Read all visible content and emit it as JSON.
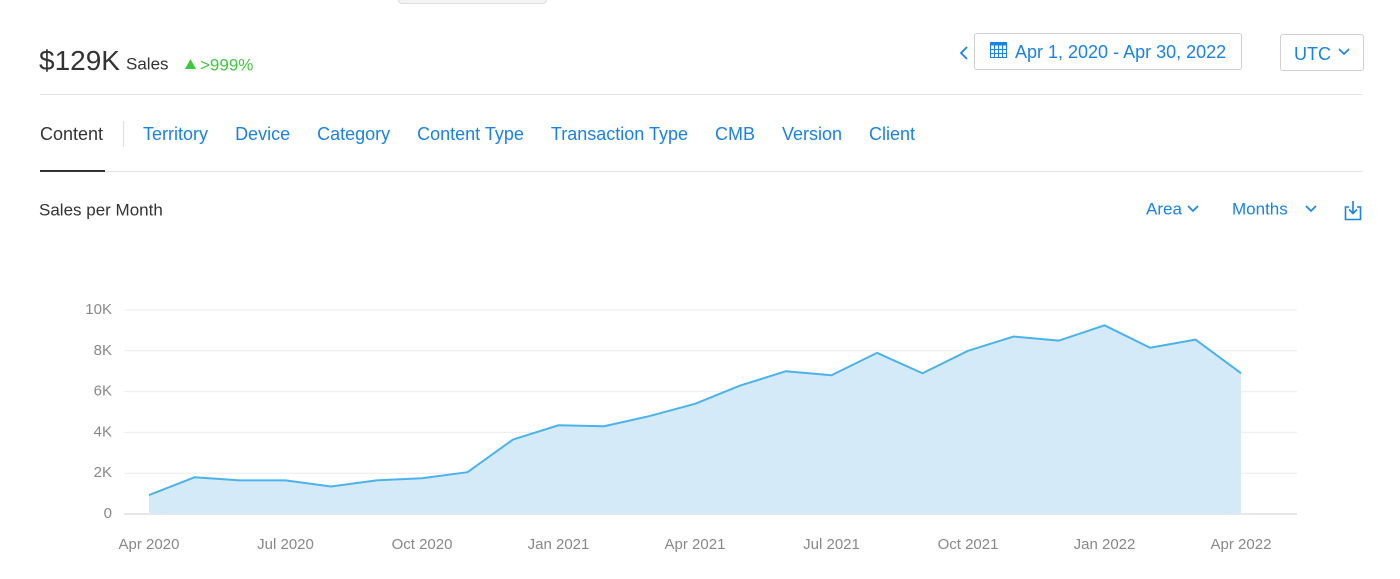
{
  "header": {
    "total": "$129K",
    "total_label": "Sales",
    "change": ">999%",
    "date_range": "Apr 1, 2020 - Apr 30, 2022",
    "timezone": "UTC"
  },
  "tabs": [
    "Content",
    "Territory",
    "Device",
    "Category",
    "Content Type",
    "Transaction Type",
    "CMB",
    "Version",
    "Client"
  ],
  "chart_controls": {
    "chart_type": "Area",
    "period": "Months"
  },
  "chart_data": {
    "type": "area",
    "title": "Sales per Month",
    "categories": [
      "Apr 2020",
      null,
      null,
      "Jul 2020",
      null,
      null,
      "Oct 2020",
      null,
      null,
      "Jan 2021",
      null,
      null,
      "Apr 2021",
      null,
      null,
      "Jul 2021",
      null,
      null,
      "Oct 2021",
      null,
      null,
      "Jan 2022",
      null,
      null,
      "Apr 2022"
    ],
    "values": [
      930,
      1800,
      1650,
      1650,
      1350,
      1650,
      1750,
      2050,
      3650,
      4350,
      4300,
      4800,
      5400,
      6300,
      7000,
      6800,
      7900,
      6900,
      8000,
      8700,
      8500,
      9250,
      8150,
      8550,
      6900
    ],
    "color": "#4bb3ea",
    "fill_color": "#d5eaf8",
    "ylim": [
      0,
      10000
    ],
    "yticks": [
      0,
      {
        "value": 2000,
        "label": "2K"
      },
      {
        "value": 4000,
        "label": "4K"
      },
      {
        "value": 6000,
        "label": "6K"
      },
      {
        "value": 8000,
        "label": "8K"
      },
      {
        "value": 10000,
        "label": "10K"
      }
    ],
    "grid": true
  }
}
